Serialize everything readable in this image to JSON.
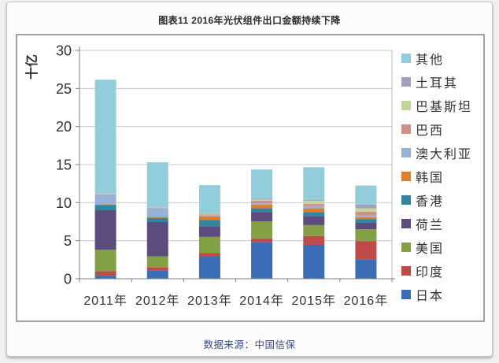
{
  "title": "图表11 2016年光伏组件出口金额持续下降",
  "source_note": "数据来源：中国信保",
  "chart_data": {
    "type": "bar",
    "stacked": true,
    "title": "图表11 2016年光伏组件出口金额持续下降",
    "ylabel": "十亿",
    "categories": [
      "2011年",
      "2012年",
      "2013年",
      "2014年",
      "2015年",
      "2016年"
    ],
    "y_ticks": [
      0,
      5,
      10,
      15,
      20,
      25,
      30
    ],
    "ylim": [
      0,
      30
    ],
    "grid": true,
    "legend_position": "right",
    "series": [
      {
        "name": "日本",
        "color": "#3a6db5",
        "values": [
          0.4,
          1.1,
          2.9,
          4.8,
          4.45,
          2.55
        ]
      },
      {
        "name": "印度",
        "color": "#be4b48",
        "values": [
          0.6,
          0.35,
          0.5,
          0.5,
          1.15,
          2.4
        ]
      },
      {
        "name": "美国",
        "color": "#84a045",
        "values": [
          2.8,
          1.5,
          2.1,
          2.25,
          1.45,
          1.55
        ]
      },
      {
        "name": "荷兰",
        "color": "#5c4b7d",
        "values": [
          5.2,
          4.5,
          1.4,
          1.2,
          1.2,
          0.85
        ]
      },
      {
        "name": "香港",
        "color": "#31859c",
        "values": [
          0.7,
          0.55,
          0.8,
          0.5,
          0.5,
          0.5
        ]
      },
      {
        "name": "韩国",
        "color": "#de7e2d",
        "values": [
          0.1,
          0.15,
          0.5,
          0.5,
          0.5,
          0.25
        ]
      },
      {
        "name": "澳大利亚",
        "color": "#95b3d7",
        "values": [
          1.3,
          1.1,
          0.15,
          0.15,
          0.3,
          0.2
        ]
      },
      {
        "name": "巴西",
        "color": "#d08f8d",
        "values": [
          0.05,
          0.05,
          0.1,
          0.35,
          0.3,
          0.5
        ]
      },
      {
        "name": "巴基斯坦",
        "color": "#c3d69b",
        "values": [
          0.05,
          0.05,
          0.1,
          0.15,
          0.4,
          0.45
        ]
      },
      {
        "name": "土耳其",
        "color": "#a3a0bf",
        "values": [
          0.05,
          0.05,
          0.05,
          0.1,
          0.1,
          0.5
        ]
      },
      {
        "name": "其他",
        "color": "#92cddc",
        "values": [
          14.9,
          5.9,
          3.7,
          3.85,
          4.3,
          2.5
        ]
      }
    ]
  }
}
